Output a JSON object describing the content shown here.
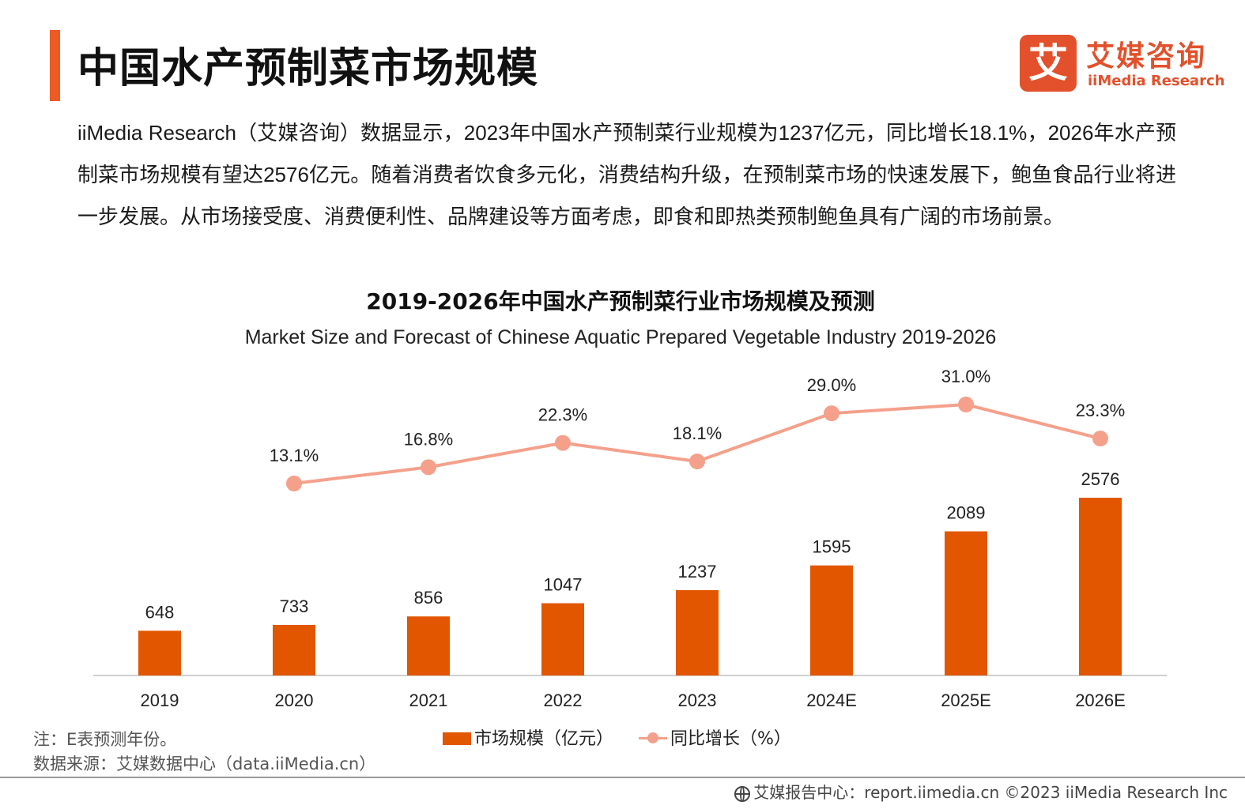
{
  "header": {
    "title": "中国水产预制菜市场规模",
    "logo": {
      "icon_char": "艾",
      "name_cn": "艾媒咨询",
      "name_en": "iiMedia Research"
    }
  },
  "summary": "iiMedia Research（艾媒咨询）数据显示，2023年中国水产预制菜行业规模为1237亿元，同比增长18.1%，2026年水产预制菜市场规模有望达2576亿元。随着消费者饮食多元化，消费结构升级，在预制菜市场的快速发展下，鲍鱼食品行业将进一步发展。从市场接受度、消费便利性、品牌建设等方面考虑，即食和即热类预制鲍鱼具有广阔的市场前景。",
  "chart_data": {
    "type": "bar",
    "title": "2019-2026年中国水产预制菜行业市场规模及预测",
    "subtitle": "Market Size and Forecast of Chinese Aquatic Prepared Vegetable Industry 2019-2026",
    "categories": [
      "2019",
      "2020",
      "2021",
      "2022",
      "2023",
      "2024E",
      "2025E",
      "2026E"
    ],
    "series": [
      {
        "name": "市场规模（亿元）",
        "kind": "bar",
        "color": "#e25600",
        "values": [
          648,
          733,
          856,
          1047,
          1237,
          1595,
          2089,
          2576
        ]
      },
      {
        "name": "同比增长（%）",
        "kind": "line",
        "color": "#f4a08b",
        "values": [
          null,
          13.1,
          16.8,
          22.3,
          18.1,
          29.0,
          31.0,
          23.3
        ],
        "labels": [
          null,
          "13.1%",
          "16.8%",
          "22.3%",
          "18.1%",
          "29.0%",
          "31.0%",
          "23.3%"
        ]
      }
    ],
    "legend_position": "bottom",
    "grid": false
  },
  "notes": {
    "note": "注：E表预测年份。",
    "source": "数据来源：艾媒数据中心（data.iiMedia.cn）"
  },
  "footer": {
    "text": "艾媒报告中心：report.iimedia.cn   ©2023  iiMedia Research  Inc"
  }
}
